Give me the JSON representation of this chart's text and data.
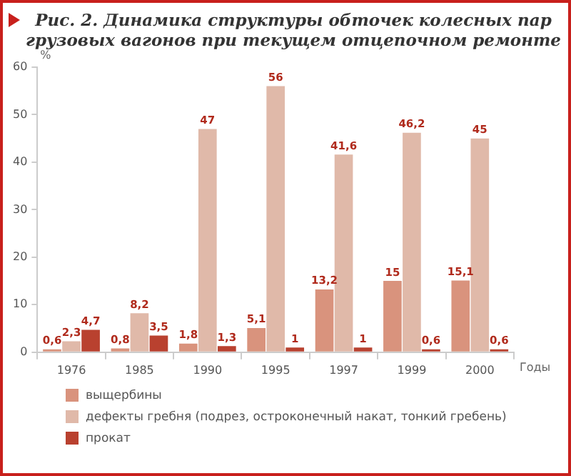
{
  "chart_data": {
    "type": "bar",
    "title": "Рис. 2. Динамика структуры обточек колесных пар грузовых вагонов при текущем отцепочном ремонте",
    "ylabel": "%",
    "xlabel": "Годы",
    "categories": [
      "1976",
      "1985",
      "1990",
      "1995",
      "1997",
      "1999",
      "2000"
    ],
    "series": [
      {
        "name": "выщербины",
        "color": "#d9937d",
        "values": [
          0.6,
          0.8,
          1.8,
          5.1,
          13.2,
          15,
          15.1
        ],
        "value_labels": [
          "0,6",
          "0,8",
          "1,8",
          "5,1",
          "13,2",
          "15",
          "15,1"
        ]
      },
      {
        "name": "дефекты гребня (подрез, остроконечный накат, тонкий гребень)",
        "color": "#e0b9a9",
        "values": [
          2.3,
          8.2,
          47,
          56,
          41.6,
          46.2,
          45
        ],
        "value_labels": [
          "2,3",
          "8,2",
          "47",
          "56",
          "41,6",
          "46,2",
          "45"
        ]
      },
      {
        "name": "прокат",
        "color": "#b9412f",
        "values": [
          4.7,
          3.5,
          1.3,
          1,
          1,
          0.6,
          0.6
        ],
        "value_labels": [
          "4,7",
          "3,5",
          "1,3",
          "1",
          "1",
          "0,6",
          "0,6"
        ]
      }
    ],
    "ylim": [
      0,
      60
    ],
    "yticks": [
      0,
      10,
      20,
      30,
      40,
      50,
      60
    ],
    "grid": false,
    "legend": "bottom"
  }
}
